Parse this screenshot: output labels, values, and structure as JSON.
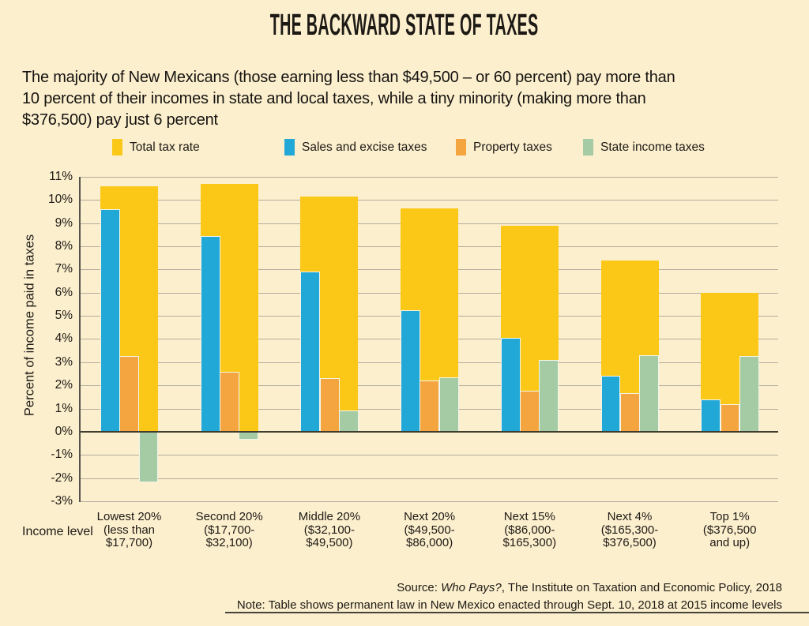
{
  "title": "THE BACKWARD STATE OF TAXES",
  "subtitle_lines": [
    "The majority of New Mexicans (those earning less than $49,500 – or 60 percent) pay more than",
    "10 percent of their incomes in state and local taxes, while a tiny minority (making more than",
    "$376,500) pay just 6 percent"
  ],
  "colors": {
    "background": "#FCEFCD",
    "total": "#FBC817",
    "sales": "#21A8D7",
    "property": "#F5A53F",
    "income": "#A5CBA4",
    "gridline": "#B3AD9F",
    "zero_line": "#403D2E",
    "text": "#231F20"
  },
  "axis": {
    "y_title": "Percent of income paid in taxes",
    "x_title": "Income level",
    "y_ticks": [
      "11%",
      "10%",
      "9%",
      "8%",
      "7%",
      "6%",
      "5%",
      "4%",
      "3%",
      "2%",
      "1%",
      "0%",
      "-1%",
      "-2%",
      "-3%"
    ]
  },
  "chart_data": {
    "type": "bar",
    "title": "THE BACKWARD STATE OF TAXES",
    "ylabel": "Percent of income paid in taxes",
    "xlabel": "Income level",
    "ylim": [
      -3,
      11
    ],
    "grid": true,
    "legend_position": "top",
    "categories": [
      "Lowest 20% (less than $17,700)",
      "Second 20% ($17,700-$32,100)",
      "Middle 20% ($32,100-$49,500)",
      "Next 20% ($49,500-$86,000)",
      "Next 15% ($86,000-$165,300)",
      "Next 4% ($165,300-$376,500)",
      "Top 1% ($376,500 and up)"
    ],
    "category_lines": [
      [
        "Lowest 20%",
        "(less than",
        "$17,700)"
      ],
      [
        "Second 20%",
        "($17,700-",
        "$32,100)"
      ],
      [
        "Middle 20%",
        "($32,100-",
        "$49,500)"
      ],
      [
        "Next 20%",
        "($49,500-",
        "$86,000)"
      ],
      [
        "Next 15%",
        "($86,000-",
        "$165,300)"
      ],
      [
        "Next 4%",
        "($165,300-",
        "$376,500)"
      ],
      [
        "Top 1%",
        "($376,500",
        "and up)"
      ]
    ],
    "series": [
      {
        "name": "Total tax rate",
        "color": "#FBC817",
        "values": [
          10.6,
          10.7,
          10.15,
          9.65,
          8.9,
          7.4,
          6.0
        ]
      },
      {
        "name": "Sales and excise taxes",
        "color": "#21A8D7",
        "values": [
          9.6,
          8.45,
          6.9,
          5.25,
          4.05,
          2.4,
          1.4
        ]
      },
      {
        "name": "Property taxes",
        "color": "#F5A53F",
        "values": [
          3.25,
          2.6,
          2.3,
          2.2,
          1.75,
          1.65,
          1.2
        ]
      },
      {
        "name": "State income taxes",
        "color": "#A5CBA4",
        "values": [
          -2.2,
          -0.35,
          0.9,
          2.35,
          3.1,
          3.3,
          3.25
        ]
      }
    ]
  },
  "footer": {
    "source_prefix": "Source: ",
    "source_italic": "Who Pays?",
    "source_suffix": ", The Institute on Taxation and Economic Policy, 2018",
    "note": "Note: Table shows permanent law in New Mexico enacted through Sept. 10, 2018 at 2015 income levels"
  }
}
